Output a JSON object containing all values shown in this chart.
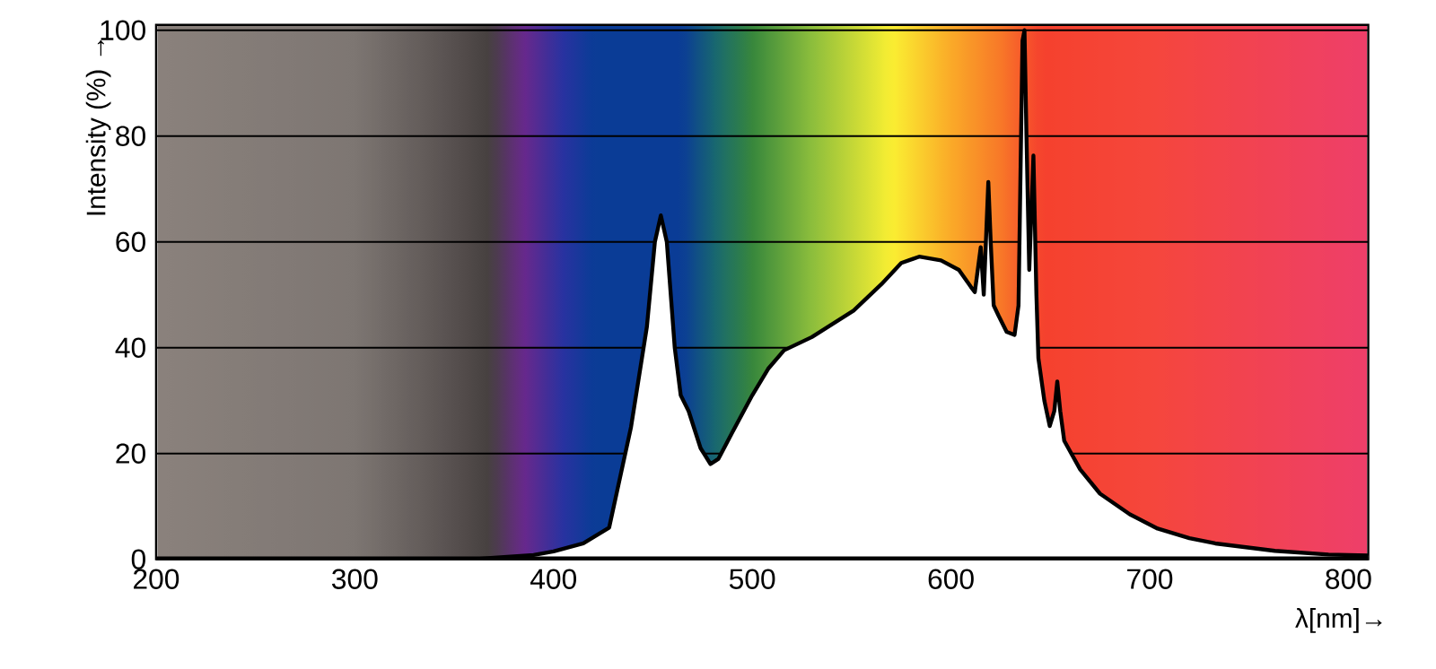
{
  "chart_data": {
    "type": "area",
    "xlabel": "λ[nm]→",
    "ylabel": "Intensity (%) →",
    "xlim": [
      200,
      810
    ],
    "ylim": [
      0,
      101
    ],
    "xticks": [
      200,
      300,
      400,
      500,
      600,
      700,
      800
    ],
    "yticks": [
      0,
      20,
      40,
      60,
      80,
      100
    ],
    "grid": "y",
    "series": [
      {
        "color": "#ffffff",
        "x": [
          200,
          360,
          370,
          390,
          400,
          415,
          428,
          439,
          447,
          451,
          454,
          457,
          461,
          464,
          468,
          474,
          479,
          483,
          490,
          500,
          508,
          516,
          530,
          551,
          565,
          575,
          584,
          595,
          604,
          610,
          612,
          615,
          616.5,
          618.8,
          620,
          621.5,
          624,
          628,
          632,
          634,
          636,
          637,
          638,
          639.4,
          641.5,
          643,
          644,
          647,
          649.7,
          652,
          653.5,
          655,
          657,
          665,
          675,
          690,
          704,
          720,
          733,
          763,
          790,
          810
        ],
        "values": [
          0,
          0,
          0.3,
          0.8,
          1.5,
          3,
          6,
          25,
          44,
          60,
          65,
          60,
          40,
          31,
          28,
          21,
          18,
          19,
          24,
          31,
          36,
          39.5,
          42,
          47,
          52,
          56,
          57.2,
          56.5,
          54.7,
          51.5,
          50.5,
          59,
          50,
          71.3,
          60,
          48,
          46,
          43,
          42.4,
          48,
          98,
          100,
          80,
          54.7,
          76.3,
          50,
          38,
          30,
          25.2,
          28,
          33.6,
          28,
          22.4,
          17,
          12.4,
          8.5,
          5.8,
          4,
          3,
          1.6,
          0.9,
          0.7
        ]
      }
    ]
  }
}
